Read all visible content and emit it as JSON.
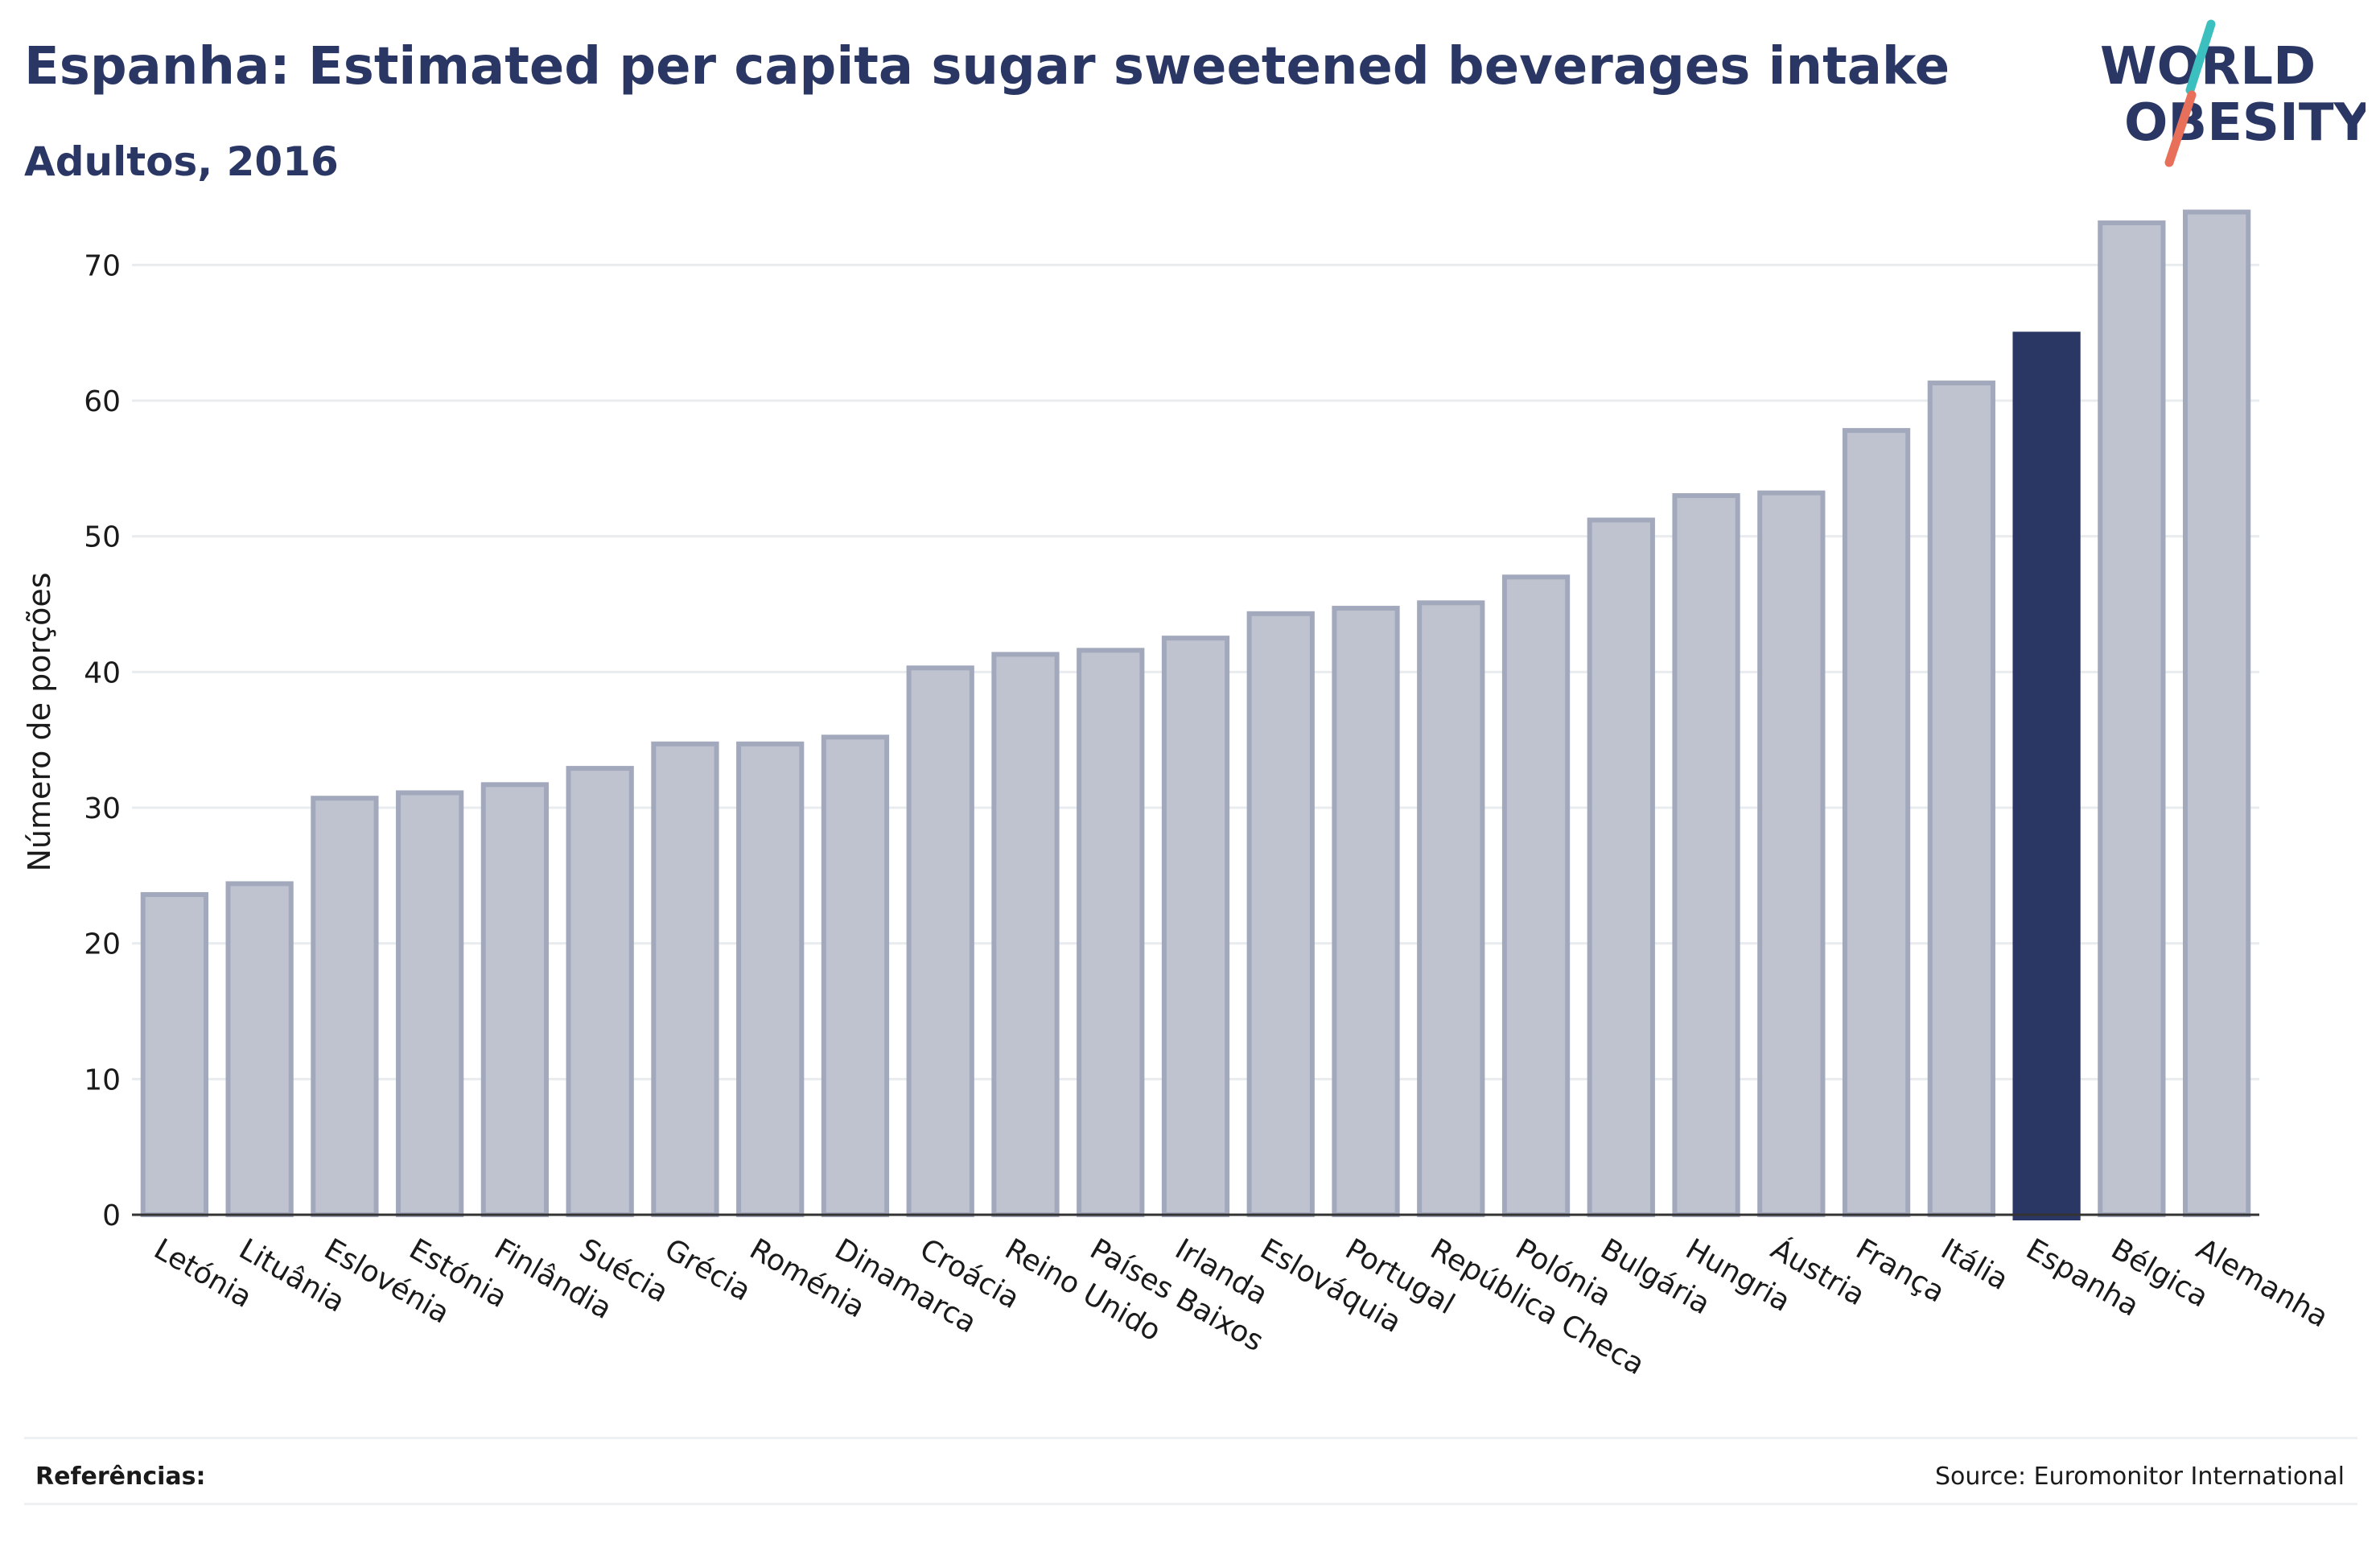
{
  "header": {
    "title": "Espanha: Estimated per capita sugar sweetened beverages intake",
    "subtitle": "Adultos, 2016"
  },
  "logo": {
    "line1": "WORLD",
    "line2": "OBESITY",
    "accent_teal": "#3cbfbf",
    "accent_coral": "#e8705a"
  },
  "footer": {
    "references_label": "Referências:",
    "source": "Source: Euromonitor International"
  },
  "colors": {
    "bar_fill": "#bfc3d0",
    "bar_stroke": "#a3a9bc",
    "highlight_fill": "#2a3764",
    "grid": "#e9ecef",
    "text": "#2a3764"
  },
  "chart_data": {
    "type": "bar",
    "ylabel": "Número de porções",
    "ylim": [
      0,
      75
    ],
    "yticks": [
      0,
      10,
      20,
      30,
      40,
      50,
      60,
      70
    ],
    "grid": true,
    "highlight": "Espanha",
    "categories": [
      "Letónia",
      "Lituânia",
      "Eslovénia",
      "Estónia",
      "Finlândia",
      "Suécia",
      "Grécia",
      "Roménia",
      "Dinamarca",
      "Croácia",
      "Reino Unido",
      "Países Baixos",
      "Irlanda",
      "Eslováquia",
      "Portugal",
      "República Checa",
      "Polónia",
      "Bulgária",
      "Hungria",
      "Áustria",
      "França",
      "Itália",
      "Espanha",
      "Bélgica",
      "Alemanha"
    ],
    "values": [
      23.6,
      24.4,
      30.7,
      31.1,
      31.7,
      32.9,
      34.7,
      34.7,
      35.2,
      40.3,
      41.3,
      41.6,
      42.5,
      44.3,
      44.7,
      45.1,
      47.0,
      51.2,
      53.0,
      53.2,
      57.8,
      61.3,
      64.9,
      73.1,
      73.9
    ]
  }
}
